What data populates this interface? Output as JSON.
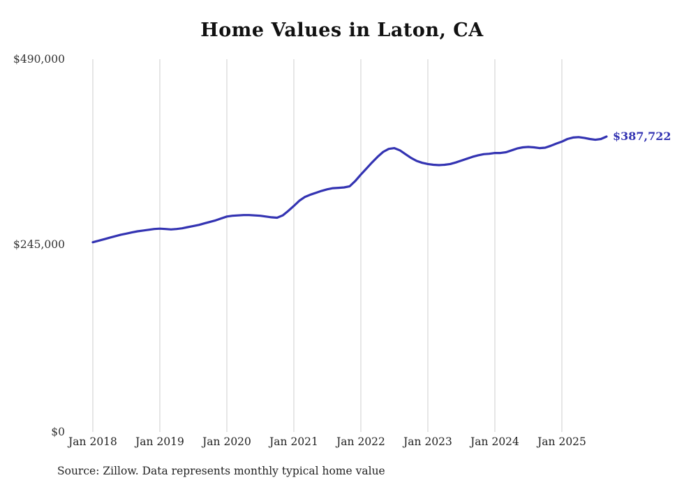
{
  "page": {
    "source_note": "Source: Zillow. Data represents monthly typical home value"
  },
  "chart_data": {
    "type": "line",
    "title": "Home Values in Laton, CA",
    "x_start": "2018-01",
    "x_frequency": "monthly",
    "x_tick_labels": [
      "Jan 2018",
      "Jan 2019",
      "Jan 2020",
      "Jan 2021",
      "Jan 2022",
      "Jan 2023",
      "Jan 2024",
      "Jan 2025"
    ],
    "y_tick_labels": [
      "$490,000",
      "$245,000",
      "$0"
    ],
    "ylim": [
      0,
      490000
    ],
    "grid": "vertical gridlines only",
    "legend": "none",
    "line_color": "#3333b2",
    "gridline_color": "#cccccc",
    "end_label": "$387,722",
    "end_value": 387722,
    "values": [
      248000,
      250000,
      252000,
      254000,
      256000,
      258000,
      259500,
      261000,
      262500,
      263500,
      264500,
      265500,
      266000,
      265500,
      265000,
      265500,
      266500,
      268000,
      269500,
      271000,
      273000,
      275000,
      277000,
      279500,
      282000,
      283000,
      283500,
      284000,
      284000,
      283500,
      283000,
      282000,
      281000,
      280500,
      283500,
      289500,
      296000,
      303000,
      308000,
      311000,
      313500,
      316000,
      318000,
      319500,
      320000,
      320500,
      322000,
      329000,
      337500,
      345500,
      353500,
      361000,
      367500,
      371500,
      372500,
      369500,
      364500,
      359500,
      355500,
      353000,
      351500,
      350500,
      350000,
      350500,
      351500,
      353500,
      356000,
      358500,
      361000,
      363000,
      364500,
      365000,
      366000,
      366000,
      367000,
      369500,
      372000,
      373500,
      374000,
      373500,
      372500,
      373000,
      375500,
      378500,
      381000,
      384500,
      386500,
      387000,
      386000,
      384500,
      383500,
      384500,
      387722
    ]
  }
}
